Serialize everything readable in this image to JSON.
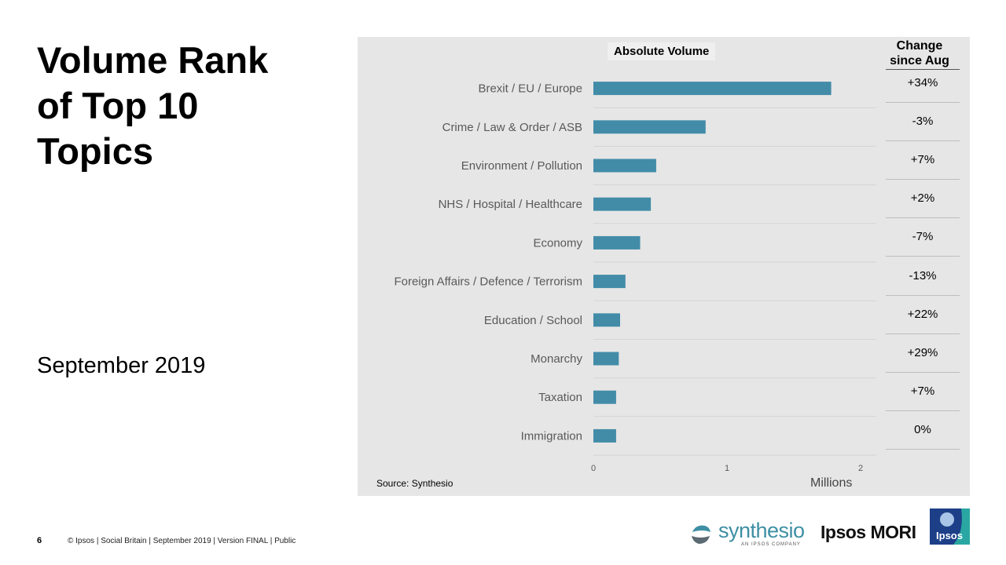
{
  "title": "Volume Rank\nof Top 10\nTopics",
  "subtitle": "September 2019",
  "chart_data": {
    "type": "bar",
    "orientation": "horizontal",
    "title": "Absolute  Volume",
    "xlabel": "Millions",
    "xlim": [
      0,
      2
    ],
    "xticks": [
      "0",
      "1",
      "2"
    ],
    "grid": false,
    "categories": [
      "Brexit / EU / Europe",
      "Crime / Law & Order / ASB",
      "Environment / Pollution",
      "NHS / Hospital / Healthcare",
      "Economy",
      "Foreign Affairs / Defence / Terrorism",
      "Education / School",
      "Monarchy",
      "Taxation",
      "Immigration"
    ],
    "values": [
      1.78,
      0.84,
      0.47,
      0.43,
      0.35,
      0.24,
      0.2,
      0.19,
      0.17,
      0.17
    ],
    "color": "#428ca8"
  },
  "change": {
    "header": "Change\nsince Aug",
    "values": [
      "+34%",
      "-3%",
      "+7%",
      "+2%",
      "-7%",
      "-13%",
      "+22%",
      "+29%",
      "+7%",
      "0%"
    ]
  },
  "source": "Source: Synthesio",
  "footer": {
    "page_number": "6",
    "text": "© Ipsos | Social Britain | September 2019 | Version FINAL | Public"
  },
  "logos": {
    "synthesio": "synthesio",
    "synthesio_tag": "AN IPSOS COMPANY",
    "ipsos_mori": "Ipsos MORI",
    "ipsos": "Ipsos"
  }
}
